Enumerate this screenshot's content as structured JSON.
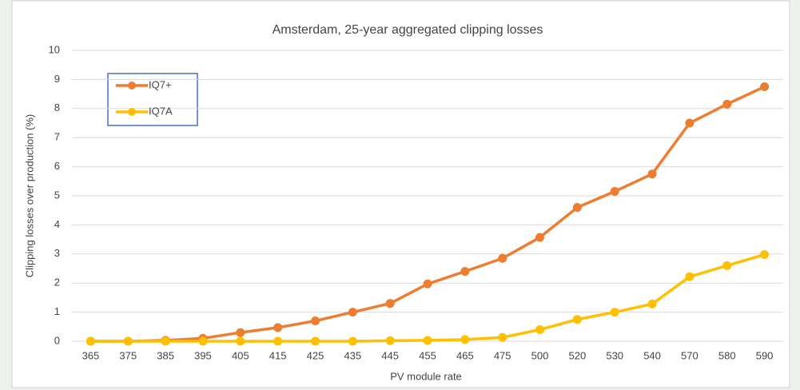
{
  "chart_data": {
    "type": "line",
    "title": "Amsterdam, 25-year aggregated clipping  losses",
    "x_label": "PV module rate",
    "y_label": "Clipping losses over production (%)",
    "categories": [
      "365",
      "375",
      "385",
      "395",
      "405",
      "415",
      "425",
      "435",
      "445",
      "455",
      "465",
      "475",
      "500",
      "520",
      "530",
      "540",
      "570",
      "580",
      "590"
    ],
    "series": [
      {
        "name": "IQ7+",
        "color": "#ed7d31",
        "values": [
          0,
          0,
          0.03,
          0.1,
          0.3,
          0.47,
          0.7,
          1.0,
          1.3,
          1.97,
          2.4,
          2.85,
          3.57,
          4.6,
          5.15,
          5.75,
          7.5,
          8.15,
          8.75
        ]
      },
      {
        "name": "IQ7A",
        "color": "#ffc000",
        "values": [
          0,
          0,
          0,
          0,
          0,
          0,
          0,
          0,
          0.02,
          0.03,
          0.06,
          0.13,
          0.4,
          0.75,
          1.0,
          1.28,
          2.22,
          2.6,
          2.98
        ]
      }
    ],
    "ylim": [
      0,
      10
    ],
    "yticks": [
      0,
      1,
      2,
      3,
      4,
      5,
      6,
      7,
      8,
      9,
      10
    ],
    "grid": true,
    "legend": "upper left"
  }
}
